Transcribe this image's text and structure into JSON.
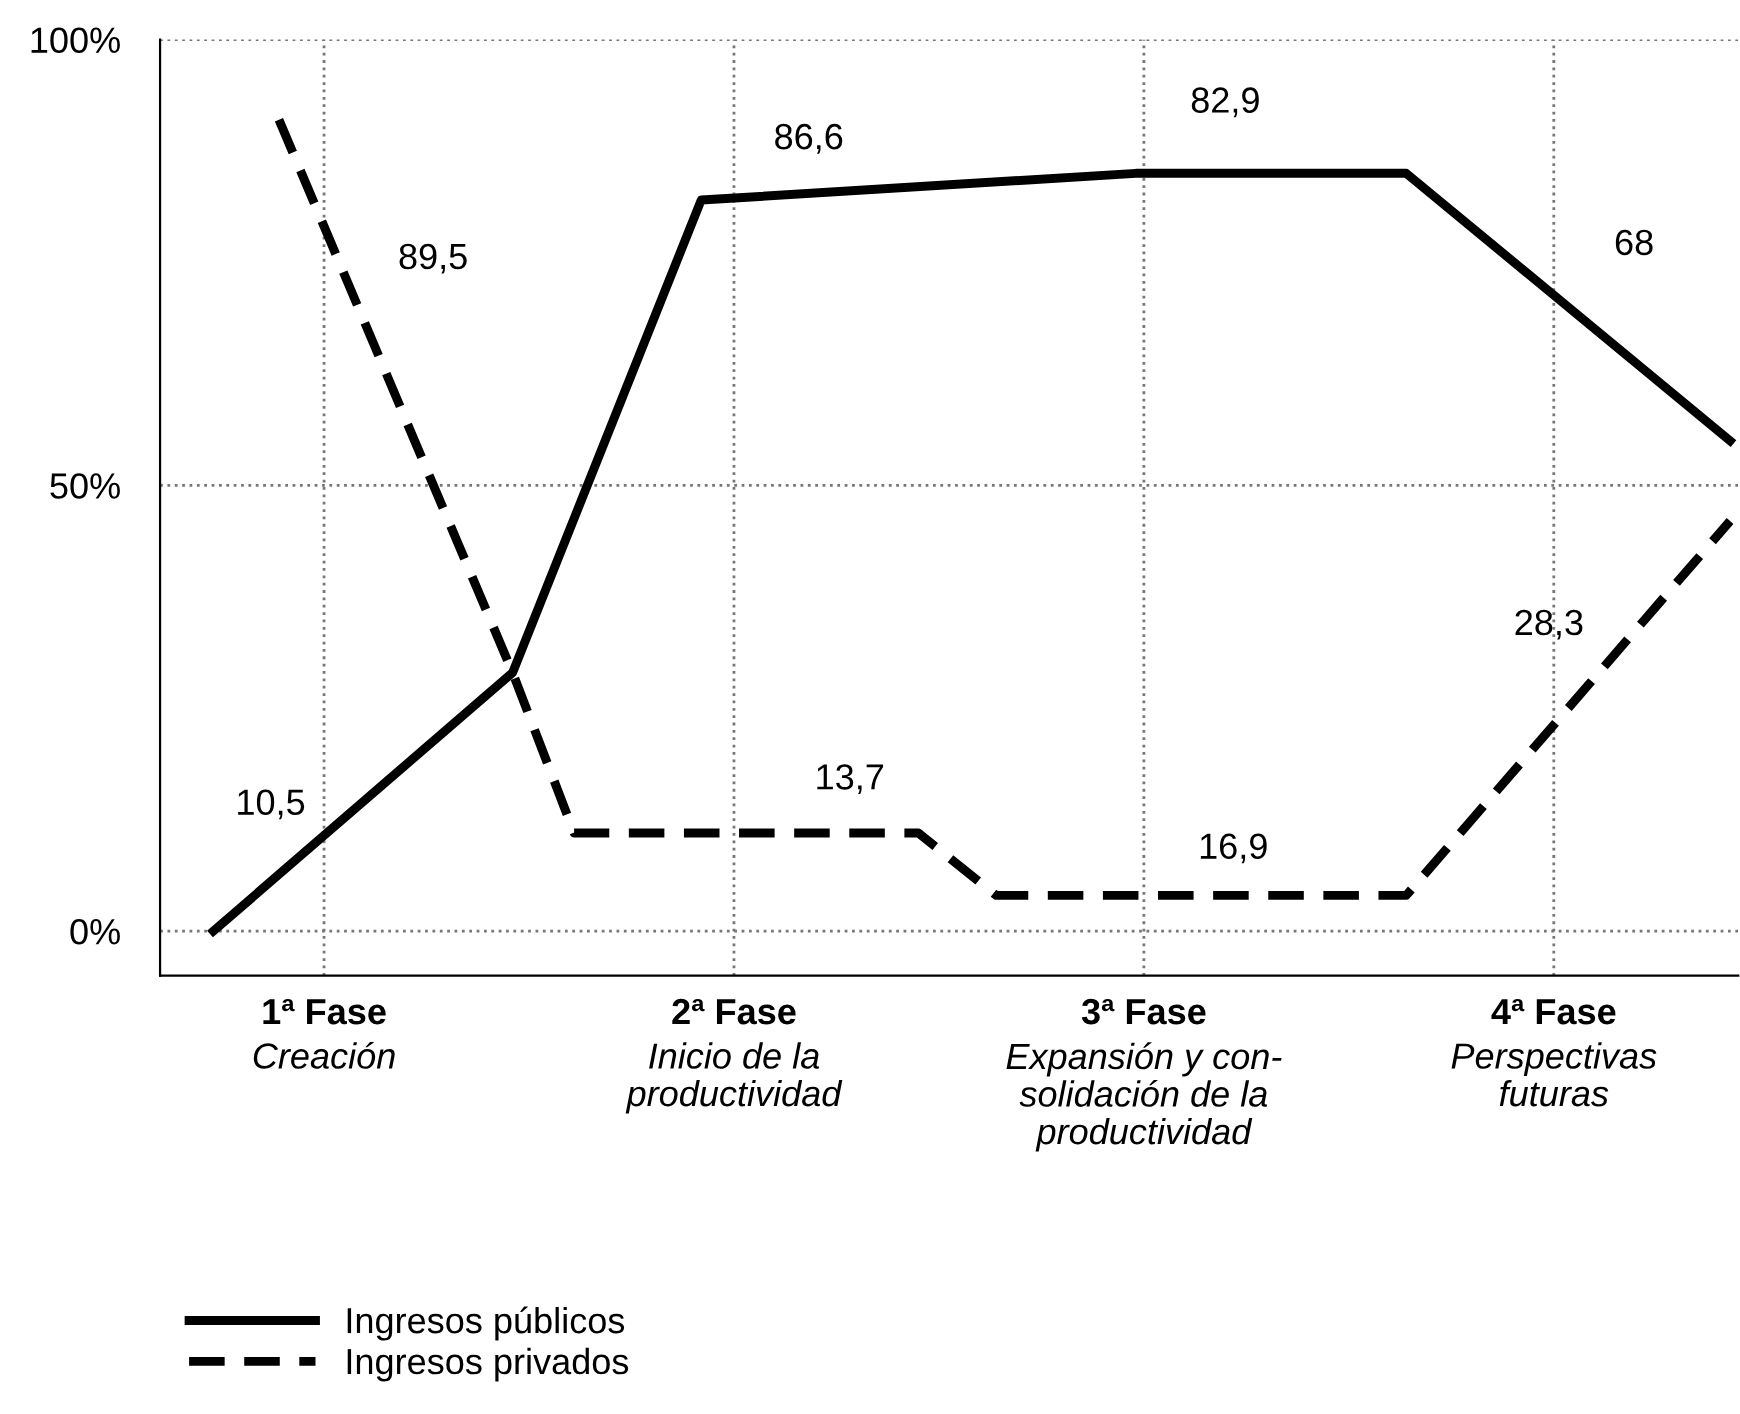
{
  "chart_data": {
    "type": "line",
    "xlim": [
      0.6,
      4.45
    ],
    "ylim": [
      -5,
      100
    ],
    "xticks": [
      {
        "value": 1,
        "label": "1ª Fase\nCreación"
      },
      {
        "value": 2,
        "label": "2ª Fase\nInicio de la\nproductividad"
      },
      {
        "value": 3,
        "label": "3ª Fase\nExpansión y con-\nsolidación de la\nproductividad"
      },
      {
        "value": 4,
        "label": "4ª Fase\nPerspectivas\nfuturas"
      }
    ],
    "yticks": [
      {
        "value": 0,
        "label": "0%"
      },
      {
        "value": 50,
        "label": "50%"
      },
      {
        "value": 100,
        "label": "100%"
      }
    ],
    "grid": true,
    "legend": "bottom left",
    "marker": "none",
    "series": [
      {
        "name": "Ingresos públicos",
        "color": "#000000",
        "line_style": "solid",
        "x": [
          0.73,
          1.46,
          1.92,
          2.98,
          3.64,
          4.43
        ],
        "values": [
          0,
          29,
          82,
          85,
          85,
          55
        ]
      },
      {
        "name": "Ingresos privados",
        "color": "#000000",
        "line_style": "dashed",
        "x": [
          0.89,
          1.46,
          1.61,
          2.45,
          2.64,
          3.64,
          4.43
        ],
        "values": [
          91,
          29,
          11,
          11,
          4,
          4,
          46
        ]
      }
    ],
    "annotations": [
      "10,5",
      "89,5",
      "86,6",
      "13,7",
      "82,9",
      "16,9",
      "68",
      "28,3"
    ]
  }
}
